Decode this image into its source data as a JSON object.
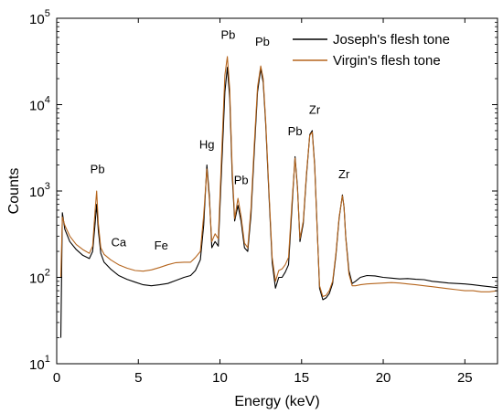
{
  "chart_data": {
    "type": "line",
    "title": "",
    "xlabel": "Energy (keV)",
    "ylabel": "Counts",
    "xlim": [
      0,
      27
    ],
    "ylim": [
      10,
      100000
    ],
    "yscale": "log",
    "grid": false,
    "legend_position": "top-right",
    "x_ticks": [
      0,
      5,
      10,
      15,
      20,
      25
    ],
    "y_ticks": [
      {
        "value": 10,
        "base": "10",
        "exp": "1"
      },
      {
        "value": 100,
        "base": "10",
        "exp": "2"
      },
      {
        "value": 1000,
        "base": "10",
        "exp": "3"
      },
      {
        "value": 10000,
        "base": "10",
        "exp": "4"
      },
      {
        "value": 100000,
        "base": "10",
        "exp": "5"
      }
    ],
    "annotations": [
      {
        "text": "Pb",
        "x": 2.5,
        "y": 1600
      },
      {
        "text": "Ca",
        "x": 3.8,
        "y": 230
      },
      {
        "text": "Fe",
        "x": 6.4,
        "y": 210
      },
      {
        "text": "Hg",
        "x": 9.2,
        "y": 3100
      },
      {
        "text": "Pb",
        "x": 10.5,
        "y": 58000
      },
      {
        "text": "Pb",
        "x": 11.3,
        "y": 1200
      },
      {
        "text": "Pb",
        "x": 12.6,
        "y": 48000
      },
      {
        "text": "Pb",
        "x": 14.6,
        "y": 4400
      },
      {
        "text": "Zr",
        "x": 15.8,
        "y": 7800
      },
      {
        "text": "Zr",
        "x": 17.6,
        "y": 1400
      }
    ],
    "series": [
      {
        "name": "Joseph's flesh tone",
        "color": "#000000",
        "x": [
          0.25,
          0.35,
          0.5,
          0.8,
          1.2,
          1.6,
          2.0,
          2.2,
          2.35,
          2.45,
          2.55,
          2.7,
          2.9,
          3.3,
          3.8,
          4.3,
          4.8,
          5.3,
          5.8,
          6.3,
          6.8,
          7.3,
          7.8,
          8.2,
          8.5,
          8.8,
          9.0,
          9.2,
          9.35,
          9.5,
          9.7,
          9.9,
          10.1,
          10.3,
          10.45,
          10.6,
          10.75,
          10.9,
          11.1,
          11.3,
          11.5,
          11.7,
          11.9,
          12.1,
          12.3,
          12.5,
          12.65,
          12.8,
          13.0,
          13.2,
          13.4,
          13.6,
          13.8,
          14.0,
          14.2,
          14.4,
          14.6,
          14.75,
          14.9,
          15.1,
          15.3,
          15.5,
          15.65,
          15.8,
          15.95,
          16.1,
          16.3,
          16.5,
          16.7,
          16.9,
          17.1,
          17.3,
          17.5,
          17.6,
          17.7,
          17.9,
          18.1,
          18.3,
          18.6,
          19.0,
          19.5,
          20.0,
          20.5,
          21.0,
          21.5,
          22.0,
          22.5,
          23.0,
          23.5,
          24.0,
          24.5,
          25.0,
          25.5,
          26.0,
          26.5,
          27.0
        ],
        "values": [
          20,
          560,
          360,
          260,
          210,
          180,
          165,
          200,
          420,
          700,
          350,
          190,
          150,
          125,
          105,
          95,
          88,
          82,
          80,
          82,
          85,
          92,
          100,
          105,
          120,
          160,
          400,
          2000,
          900,
          220,
          260,
          230,
          1800,
          14000,
          27000,
          12000,
          1500,
          450,
          680,
          440,
          220,
          200,
          520,
          2800,
          14000,
          26000,
          18000,
          6000,
          900,
          150,
          75,
          100,
          100,
          115,
          140,
          600,
          2500,
          1100,
          260,
          420,
          1500,
          4500,
          5000,
          2000,
          400,
          75,
          55,
          58,
          65,
          85,
          180,
          480,
          900,
          650,
          300,
          120,
          85,
          90,
          100,
          105,
          104,
          100,
          98,
          96,
          97,
          95,
          94,
          90,
          88,
          86,
          85,
          84,
          82,
          80,
          78,
          76
        ]
      },
      {
        "name": "Virgin's flesh tone",
        "color": "#b5651d",
        "x": [
          0.25,
          0.35,
          0.5,
          0.8,
          1.2,
          1.6,
          2.0,
          2.2,
          2.35,
          2.45,
          2.55,
          2.7,
          2.9,
          3.3,
          3.8,
          4.3,
          4.8,
          5.3,
          5.8,
          6.3,
          6.8,
          7.3,
          7.8,
          8.2,
          8.5,
          8.8,
          9.0,
          9.2,
          9.35,
          9.5,
          9.7,
          9.9,
          10.1,
          10.3,
          10.45,
          10.6,
          10.75,
          10.9,
          11.1,
          11.3,
          11.5,
          11.7,
          11.9,
          12.1,
          12.3,
          12.5,
          12.65,
          12.8,
          13.0,
          13.2,
          13.4,
          13.6,
          13.8,
          14.0,
          14.2,
          14.4,
          14.6,
          14.75,
          14.9,
          15.1,
          15.3,
          15.5,
          15.65,
          15.8,
          15.95,
          16.1,
          16.3,
          16.5,
          16.7,
          16.9,
          17.1,
          17.3,
          17.5,
          17.6,
          17.7,
          17.9,
          18.1,
          18.3,
          18.6,
          19.0,
          19.5,
          20.0,
          20.5,
          21.0,
          21.5,
          22.0,
          22.5,
          23.0,
          23.5,
          24.0,
          24.5,
          25.0,
          25.5,
          26.0,
          26.5,
          27.0
        ],
        "values": [
          100,
          500,
          400,
          300,
          240,
          210,
          190,
          230,
          600,
          1000,
          420,
          220,
          185,
          160,
          140,
          128,
          120,
          118,
          122,
          130,
          140,
          148,
          150,
          150,
          170,
          200,
          520,
          1800,
          800,
          260,
          320,
          280,
          2600,
          22000,
          36000,
          15000,
          1800,
          480,
          820,
          500,
          250,
          220,
          620,
          3400,
          16000,
          28000,
          20000,
          6500,
          1000,
          170,
          90,
          120,
          125,
          140,
          170,
          700,
          2400,
          1050,
          280,
          450,
          1600,
          4400,
          4800,
          1900,
          380,
          80,
          60,
          62,
          70,
          90,
          190,
          500,
          880,
          640,
          290,
          110,
          80,
          80,
          82,
          84,
          85,
          86,
          87,
          86,
          84,
          82,
          80,
          78,
          76,
          74,
          72,
          70,
          70,
          68,
          68,
          70
        ]
      }
    ]
  }
}
